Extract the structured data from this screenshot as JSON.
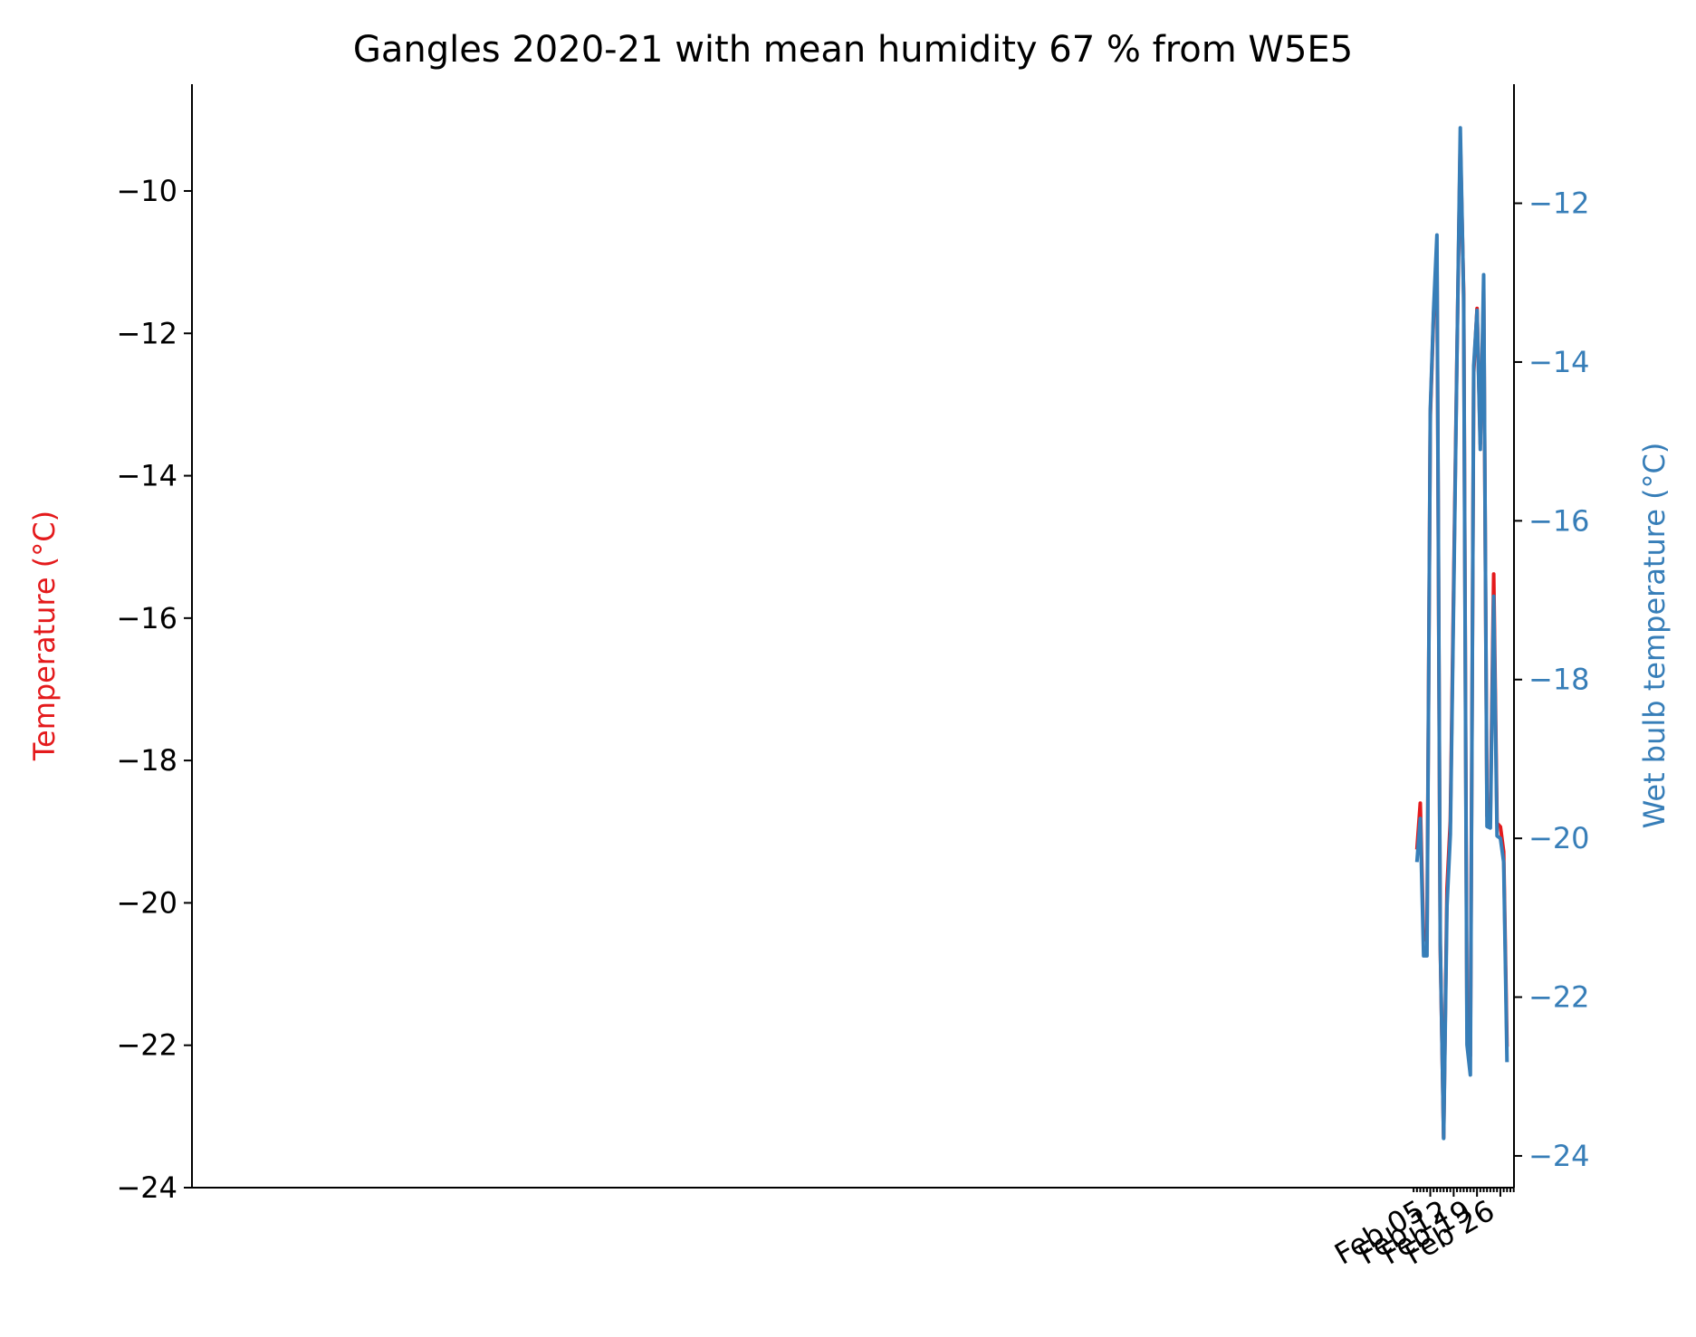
{
  "chart_data": {
    "type": "line",
    "title": "Gangles 2020-21 with mean humidity 67 % from W5E5",
    "x": [
      "2021-02-01",
      "2021-02-02",
      "2021-02-03",
      "2021-02-04",
      "2021-02-05",
      "2021-02-06",
      "2021-02-07",
      "2021-02-08",
      "2021-02-09",
      "2021-02-10",
      "2021-02-11",
      "2021-02-12",
      "2021-02-13",
      "2021-02-14",
      "2021-02-15",
      "2021-02-16",
      "2021-02-17",
      "2021-02-18",
      "2021-02-19",
      "2021-02-20",
      "2021-02-21",
      "2021-02-22",
      "2021-02-23",
      "2021-02-24",
      "2021-02-25",
      "2021-02-26",
      "2021-02-27",
      "2021-02-28"
    ],
    "x_ticks": [
      {
        "date": "2021-02-05",
        "label": "Feb 05"
      },
      {
        "date": "2021-02-12",
        "label": "Feb 12"
      },
      {
        "date": "2021-02-19",
        "label": "Feb 19"
      },
      {
        "date": "2021-02-26",
        "label": "Feb 26"
      }
    ],
    "xlim": [
      "2020-01-30T22:00",
      "2021-03-02T02:00"
    ],
    "left_axis": {
      "label": "Temperature (°C)",
      "color": "#e41a1c",
      "ylim": [
        -24.0,
        -8.5
      ],
      "ticks": [
        -24,
        -22,
        -20,
        -18,
        -16,
        -14,
        -12,
        -10
      ],
      "tick_labels": [
        "−24",
        "−22",
        "−20",
        "−18",
        "−16",
        "−14",
        "−12",
        "−10"
      ]
    },
    "right_axis": {
      "label": "Wet bulb temperature (°C)",
      "color": "#377eb8",
      "ylim": [
        -24.4,
        -10.5
      ],
      "ticks": [
        -24,
        -22,
        -20,
        -18,
        -16,
        -14,
        -12
      ],
      "tick_labels": [
        "−24",
        "−22",
        "−20",
        "−18",
        "−16",
        "−14",
        "−12"
      ]
    },
    "series": [
      {
        "axis": "left",
        "color": "#e41a1c",
        "values": [
          -19.25,
          -18.6,
          -20.52,
          -20.52,
          -13.15,
          -11.75,
          -10.85,
          -20.6,
          -23.3,
          -19.8,
          -18.85,
          -15.5,
          -12.3,
          -9.3,
          -11.45,
          -21.75,
          -22.15,
          -12.55,
          -11.65,
          -13.55,
          -11.38,
          -18.78,
          -18.78,
          -15.38,
          -18.88,
          -18.93,
          -19.28,
          -22.02
        ]
      },
      {
        "axis": "right",
        "color": "#377eb8",
        "values": [
          -20.3,
          -19.75,
          -21.48,
          -21.48,
          -14.6,
          -13.35,
          -12.4,
          -21.32,
          -23.78,
          -20.85,
          -19.95,
          -16.95,
          -13.95,
          -11.05,
          -13.2,
          -22.6,
          -22.98,
          -14.05,
          -13.35,
          -15.1,
          -12.9,
          -19.85,
          -19.87,
          -16.95,
          -19.97,
          -20.0,
          -20.3,
          -22.82
        ]
      }
    ]
  }
}
